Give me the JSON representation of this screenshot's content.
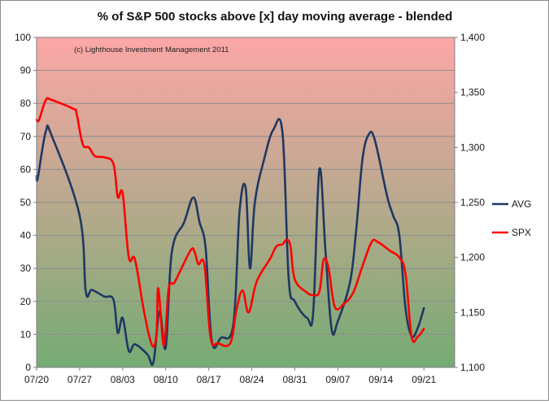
{
  "chart_data": {
    "type": "line",
    "title": "% of S&P 500 stocks above [x] day moving average - blended",
    "annotation": "(c) Lighthouse Investment Management 2011",
    "background_gradient": {
      "top": "#fca7a7",
      "bottom": "#75ab73"
    },
    "colors": {
      "AVG": "#1f3864",
      "SPX": "#ff0000"
    },
    "grid": true,
    "legend_position": "right",
    "x_axis": {
      "range": [
        0,
        68
      ],
      "ticks": [
        {
          "x": 0,
          "label": "07/20"
        },
        {
          "x": 7,
          "label": "07/27"
        },
        {
          "x": 14,
          "label": "08/03"
        },
        {
          "x": 21,
          "label": "08/10"
        },
        {
          "x": 28,
          "label": "08/17"
        },
        {
          "x": 35,
          "label": "08/24"
        },
        {
          "x": 42,
          "label": "08/31"
        },
        {
          "x": 49,
          "label": "09/07"
        },
        {
          "x": 56,
          "label": "09/14"
        },
        {
          "x": 63,
          "label": "09/21"
        }
      ]
    },
    "y_left": {
      "range": [
        0,
        100
      ],
      "ticks": [
        {
          "v": 0,
          "label": "0"
        },
        {
          "v": 10,
          "label": "10"
        },
        {
          "v": 20,
          "label": "20"
        },
        {
          "v": 30,
          "label": "30"
        },
        {
          "v": 40,
          "label": "40"
        },
        {
          "v": 50,
          "label": "50"
        },
        {
          "v": 60,
          "label": "60"
        },
        {
          "v": 70,
          "label": "70"
        },
        {
          "v": 80,
          "label": "80"
        },
        {
          "v": 90,
          "label": "90"
        },
        {
          "v": 100,
          "label": "100"
        }
      ]
    },
    "y_right": {
      "range": [
        1100,
        1400
      ],
      "ticks": [
        {
          "v": 1100,
          "label": "1,100"
        },
        {
          "v": 1150,
          "label": "1,150"
        },
        {
          "v": 1200,
          "label": "1,200"
        },
        {
          "v": 1250,
          "label": "1,250"
        },
        {
          "v": 1300,
          "label": "1,300"
        },
        {
          "v": 1350,
          "label": "1,350"
        },
        {
          "v": 1400,
          "label": "1,400"
        }
      ]
    },
    "series": [
      {
        "name": "AVG",
        "axis": "left",
        "points": [
          [
            0,
            58
          ],
          [
            0.2,
            57.5
          ],
          [
            1.5,
            71.5
          ],
          [
            2.5,
            70
          ],
          [
            7,
            46
          ],
          [
            8,
            23
          ],
          [
            9,
            23.5
          ],
          [
            11,
            21.5
          ],
          [
            12.5,
            20.5
          ],
          [
            13.2,
            10.5
          ],
          [
            14,
            15
          ],
          [
            15,
            5
          ],
          [
            16,
            7
          ],
          [
            18,
            4
          ],
          [
            19,
            1.5
          ],
          [
            20,
            17
          ],
          [
            21,
            6
          ],
          [
            22,
            35
          ],
          [
            24,
            44
          ],
          [
            25.5,
            51.5
          ],
          [
            26.5,
            44
          ],
          [
            27.5,
            36
          ],
          [
            28.5,
            8
          ],
          [
            30,
            9
          ],
          [
            32,
            13
          ],
          [
            33,
            47
          ],
          [
            34,
            54.5
          ],
          [
            34.7,
            30
          ],
          [
            35.5,
            50
          ],
          [
            37,
            63
          ],
          [
            38.5,
            72
          ],
          [
            40,
            71
          ],
          [
            41,
            27
          ],
          [
            42,
            20
          ],
          [
            44,
            15
          ],
          [
            45,
            17
          ],
          [
            46,
            60
          ],
          [
            47,
            35
          ],
          [
            48,
            11.5
          ],
          [
            49,
            14
          ],
          [
            51,
            26
          ],
          [
            52,
            42
          ],
          [
            53,
            63
          ],
          [
            54,
            70.5
          ],
          [
            55,
            69
          ],
          [
            57,
            52
          ],
          [
            58,
            46
          ],
          [
            59,
            40
          ],
          [
            60,
            18
          ],
          [
            61,
            9.5
          ],
          [
            62,
            12
          ],
          [
            63,
            18
          ]
        ]
      },
      {
        "name": "SPX",
        "axis": "right",
        "points": [
          [
            0,
            1325
          ],
          [
            0.4,
            1325
          ],
          [
            1.5,
            1343
          ],
          [
            2.5,
            1343
          ],
          [
            6,
            1335
          ],
          [
            6.5,
            1331
          ],
          [
            7.5,
            1303
          ],
          [
            8.5,
            1300
          ],
          [
            9.5,
            1292
          ],
          [
            11,
            1291
          ],
          [
            12.5,
            1285
          ],
          [
            13.2,
            1255
          ],
          [
            14,
            1258
          ],
          [
            15,
            1200
          ],
          [
            16,
            1198
          ],
          [
            17.5,
            1150
          ],
          [
            18.8,
            1120
          ],
          [
            19.5,
            1130
          ],
          [
            19.8,
            1172
          ],
          [
            20.7,
            1120
          ],
          [
            21.5,
            1172
          ],
          [
            22.5,
            1178
          ],
          [
            25,
            1206
          ],
          [
            25.7,
            1205
          ],
          [
            26.3,
            1194
          ],
          [
            27.3,
            1193
          ],
          [
            28.3,
            1127
          ],
          [
            29.5,
            1122
          ],
          [
            31.5,
            1122
          ],
          [
            32.5,
            1152
          ],
          [
            33.5,
            1170
          ],
          [
            34.5,
            1150
          ],
          [
            35.8,
            1178
          ],
          [
            38,
            1199
          ],
          [
            39,
            1210
          ],
          [
            40,
            1212
          ],
          [
            40.7,
            1216
          ],
          [
            41.3,
            1210
          ],
          [
            42,
            1180
          ],
          [
            44,
            1168
          ],
          [
            45,
            1166
          ],
          [
            46,
            1169
          ],
          [
            46.7,
            1198
          ],
          [
            47.5,
            1190
          ],
          [
            48.5,
            1155
          ],
          [
            50,
            1158
          ],
          [
            51.5,
            1168
          ],
          [
            53,
            1192
          ],
          [
            54.5,
            1214
          ],
          [
            55.5,
            1214
          ],
          [
            57.5,
            1206
          ],
          [
            59,
            1200
          ],
          [
            60,
            1185
          ],
          [
            61,
            1128
          ],
          [
            62,
            1128
          ],
          [
            63,
            1135
          ]
        ]
      }
    ]
  }
}
